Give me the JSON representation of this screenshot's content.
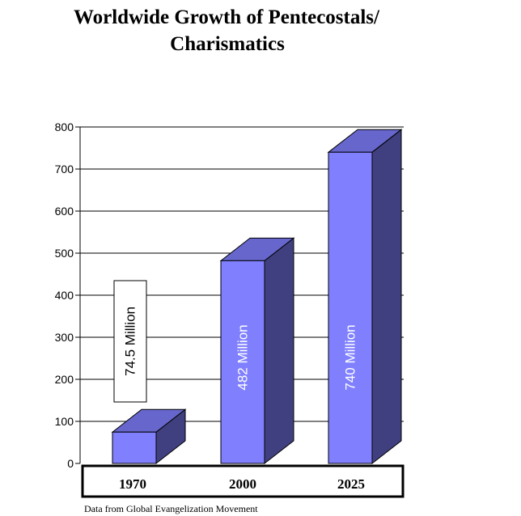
{
  "chart_data": {
    "type": "bar",
    "title": "Worldwide Growth of Pentecostals/ Charismatics",
    "title_lines": [
      "Worldwide Growth of Pentecostals/",
      "Charismatics"
    ],
    "categories": [
      "1970",
      "2000",
      "2025"
    ],
    "values": [
      74.5,
      482,
      740
    ],
    "data_labels": [
      "74.5 Million",
      "482 Million",
      "740 Million"
    ],
    "ylim": [
      0,
      800
    ],
    "yticks": [
      "0",
      "100",
      "200",
      "300",
      "400",
      "500",
      "600",
      "700",
      "800"
    ],
    "xlabel": "",
    "ylabel": "",
    "grid": true,
    "style": "3d-bar",
    "colors": {
      "front": "#8080ff",
      "top": "#6666cc",
      "side": "#404080"
    },
    "source": "Data from Global Evangelization Movement"
  }
}
